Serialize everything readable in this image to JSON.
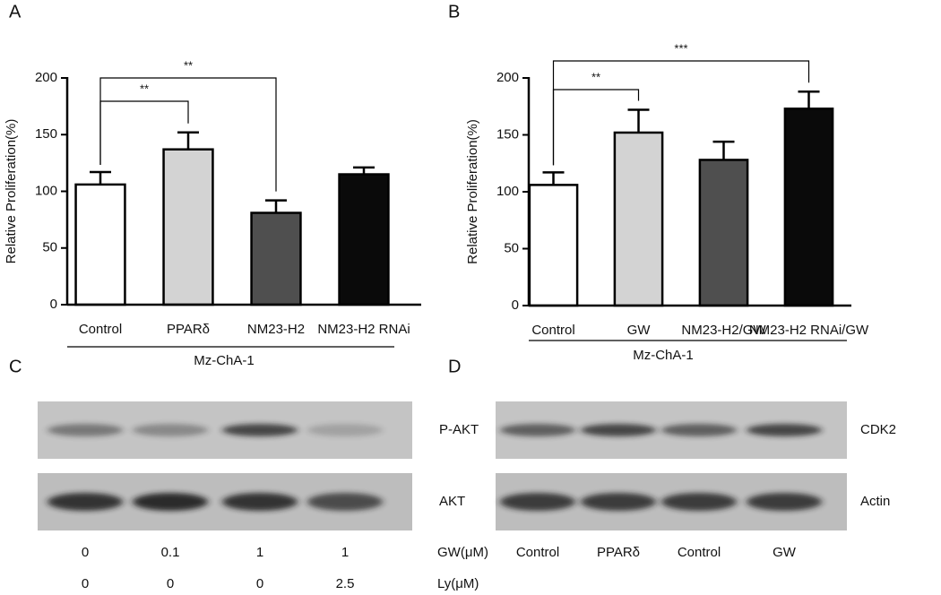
{
  "chart_data": [
    {
      "type": "bar",
      "panel": "A",
      "ylabel": "Relative Proliferation(%)",
      "categories": [
        "Control",
        "PPARδ",
        "NM23-H2",
        "NM23-H2 RNAi"
      ],
      "values": [
        106,
        137,
        81,
        115
      ],
      "errors": [
        11,
        15,
        11,
        6
      ],
      "colors": [
        "#ffffff",
        "#d3d3d3",
        "#4f4f4f",
        "#0a0a0a"
      ],
      "group_label": "Mz-ChA-1",
      "ylim": [
        0,
        200
      ],
      "yticks": [
        0,
        50,
        100,
        150,
        200
      ],
      "comparisons": [
        {
          "from": "Control",
          "to": "PPARδ",
          "label": "**"
        },
        {
          "from": "Control",
          "to": "NM23-H2",
          "label": "**"
        }
      ]
    },
    {
      "type": "bar",
      "panel": "B",
      "ylabel": "Relative Proliferation(%)",
      "categories": [
        "Control",
        "GW",
        "NM23-H2/GW",
        "NM23-H2 RNAi/GW"
      ],
      "values": [
        106,
        152,
        128,
        173
      ],
      "errors": [
        11,
        20,
        16,
        15
      ],
      "colors": [
        "#ffffff",
        "#d3d3d3",
        "#4f4f4f",
        "#0a0a0a"
      ],
      "group_label": "Mz-ChA-1",
      "ylim": [
        0,
        200
      ],
      "yticks": [
        0,
        50,
        100,
        150,
        200
      ],
      "comparisons": [
        {
          "from": "Control",
          "to": "GW",
          "label": "**"
        },
        {
          "from": "Control",
          "to": "NM23-H2 RNAi/GW",
          "label": "***"
        }
      ]
    }
  ],
  "blots": [
    {
      "panel": "C",
      "bands": [
        "P-AKT",
        "AKT"
      ],
      "conditions": [
        {
          "label": "GW(μM)",
          "values": [
            0,
            0.1,
            1,
            1
          ]
        },
        {
          "label": "Ly(μM)",
          "values": [
            0,
            0,
            0,
            2.5
          ]
        }
      ]
    },
    {
      "panel": "D",
      "bands": [
        "CDK2",
        "Actin"
      ],
      "lanes": [
        "Control",
        "PPARδ",
        "Control",
        "GW"
      ]
    }
  ]
}
